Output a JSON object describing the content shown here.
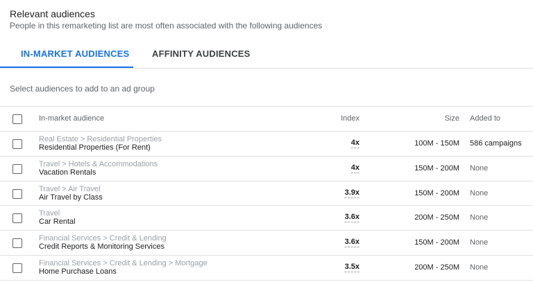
{
  "header": {
    "title": "Relevant audiences",
    "subtitle": "People in this remarketing list are most often associated with the following audiences"
  },
  "tabs": [
    "IN-MARKET AUDIENCES",
    "AFFINITY AUDIENCES"
  ],
  "hint": "Select audiences to add to an ad group",
  "table": {
    "columns": [
      "In-market audience",
      "Index",
      "Size",
      "Added to"
    ],
    "rows": [
      {
        "path": "Real Estate > Residential Properties",
        "name": "Residential Properties (For Rent)",
        "index": "4x",
        "size": "100M - 150M",
        "added": "586 campaigns"
      },
      {
        "path": "Travel > Hotels & Accommodations",
        "name": "Vacation Rentals",
        "index": "4x",
        "size": "150M - 200M",
        "added": "None"
      },
      {
        "path": "Travel > Air Travel",
        "name": "Air Travel by Class",
        "index": "3.9x",
        "size": "150M - 200M",
        "added": "None"
      },
      {
        "path": "Travel",
        "name": "Car Rental",
        "index": "3.6x",
        "size": "200M - 250M",
        "added": "None"
      },
      {
        "path": "Financial Services > Credit & Lending",
        "name": "Credit Reports & Monitoring Services",
        "index": "3.6x",
        "size": "150M - 200M",
        "added": "None"
      },
      {
        "path": "Financial Services > Credit & Lending > Mortgage",
        "name": "Home Purchase Loans",
        "index": "3.5x",
        "size": "200M - 250M",
        "added": "None"
      }
    ]
  }
}
